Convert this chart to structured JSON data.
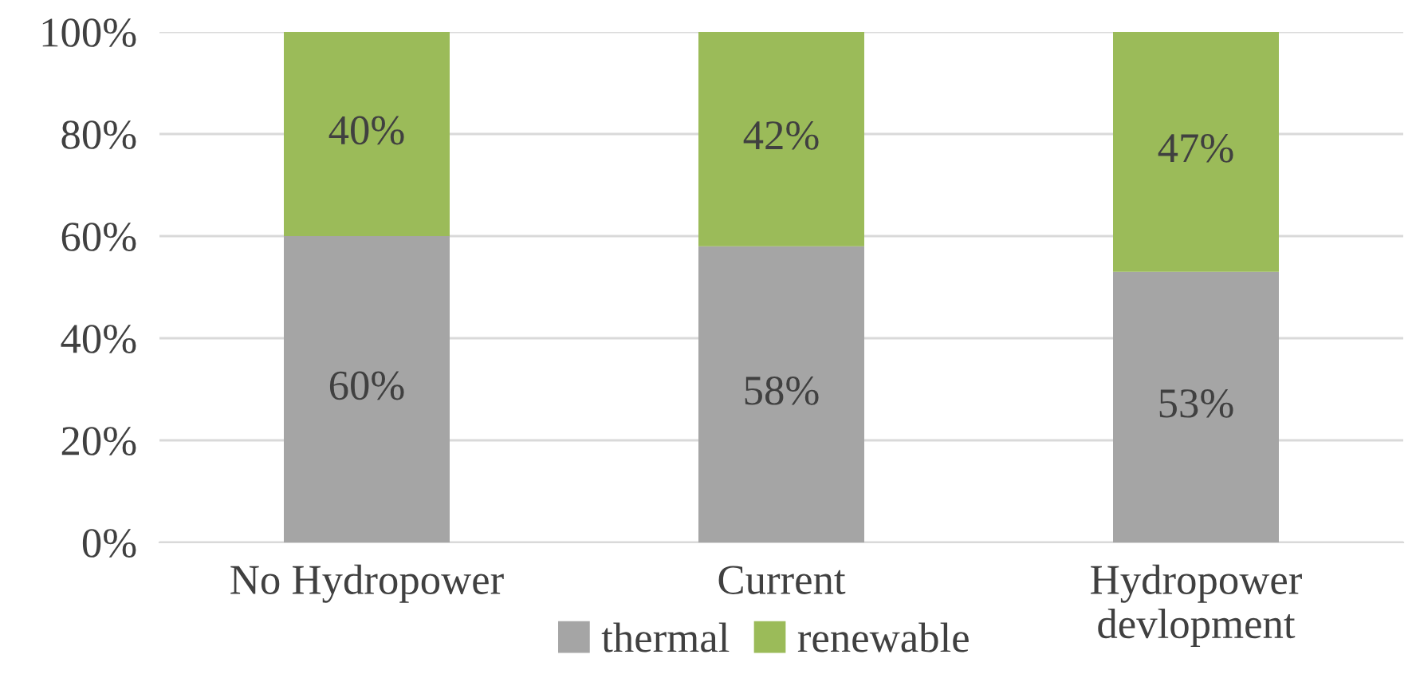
{
  "chart_data": {
    "type": "bar",
    "stacked": true,
    "categories": [
      "No Hydropower",
      "Current",
      "Hydropower\ndevlopment"
    ],
    "series": [
      {
        "name": "thermal",
        "color": "#a5a5a5",
        "values": [
          60,
          58,
          53
        ],
        "value_labels": [
          "60%",
          "58%",
          "53%"
        ]
      },
      {
        "name": "renewable",
        "color": "#9bbb59",
        "values": [
          40,
          42,
          47
        ],
        "value_labels": [
          "40%",
          "42%",
          "47%"
        ]
      }
    ],
    "ylim": [
      0,
      100
    ],
    "yticks": [
      {
        "value": 0,
        "label": "0%"
      },
      {
        "value": 20,
        "label": "20%"
      },
      {
        "value": 40,
        "label": "40%"
      },
      {
        "value": 60,
        "label": "60%"
      },
      {
        "value": 80,
        "label": "80%"
      },
      {
        "value": 100,
        "label": "100%"
      }
    ],
    "grid": "y",
    "legend": "bottom"
  }
}
